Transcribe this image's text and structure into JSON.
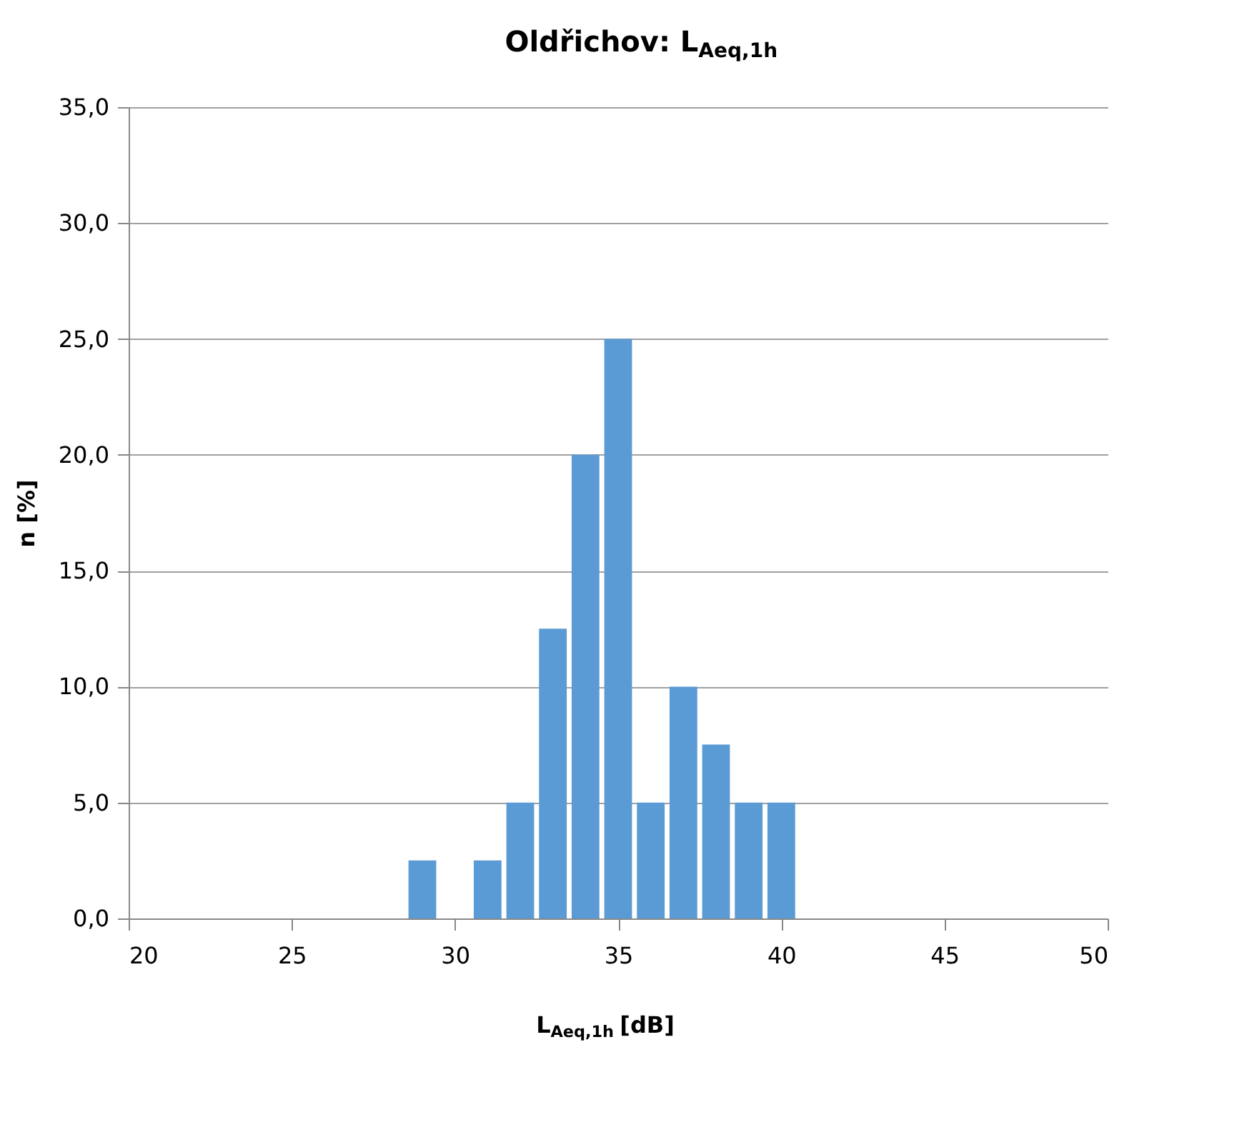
{
  "chart_data": {
    "type": "bar",
    "title": "Oldřichov: L$_{Aeq,1h}$",
    "xlabel": "L$_{Aeq,1h}$ [dB]",
    "ylabel": "n  [%]",
    "x": [
      29,
      30,
      31,
      32,
      33,
      34,
      35,
      36,
      37,
      38,
      39,
      40
    ],
    "values": [
      2.5,
      0,
      2.5,
      5,
      12.5,
      20,
      25,
      5,
      10,
      7.5,
      5,
      5
    ],
    "color": "#5b9bd5",
    "xlim": [
      20,
      50
    ],
    "xticks": [
      20,
      25,
      30,
      35,
      40,
      45,
      50
    ],
    "ylim": [
      0,
      35
    ],
    "yticks": [
      {
        "value": 0,
        "label": "0,0"
      },
      {
        "value": 5,
        "label": "5,0"
      },
      {
        "value": 10,
        "label": "10,0"
      },
      {
        "value": 15,
        "label": "15,0"
      },
      {
        "value": 20,
        "label": "20,0"
      },
      {
        "value": 25,
        "label": "25,0"
      },
      {
        "value": 30,
        "label": "30,0"
      },
      {
        "value": 35,
        "label": "35,0"
      }
    ],
    "grid": "y"
  }
}
